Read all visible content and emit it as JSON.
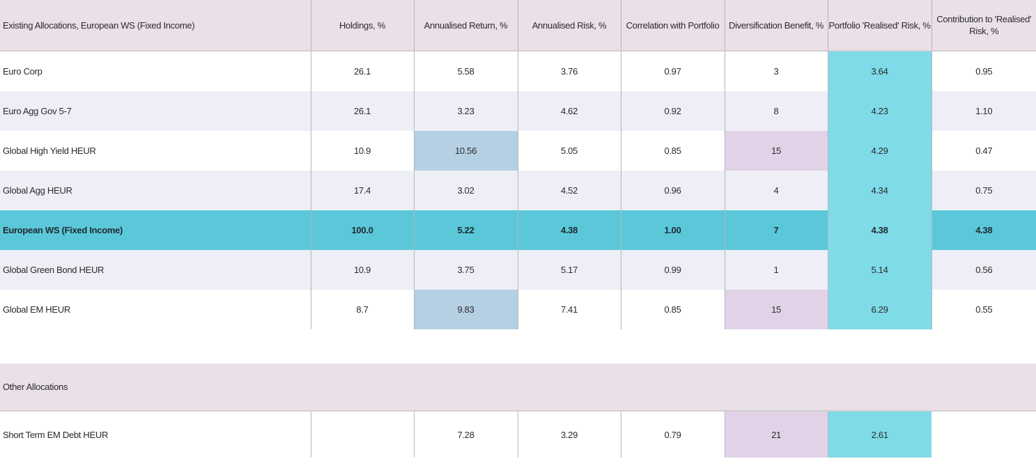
{
  "table": {
    "columns": [
      "Existing Allocations, European WS (Fixed Income)",
      "Holdings, %",
      "Annualised Return, %",
      "Annualised Risk, %",
      "Correlation with Portfolio",
      "Diversification Benefit, %",
      "Portfolio 'Realised' Risk, %",
      "Contribution to 'Realised' Risk, %"
    ],
    "rows": [
      {
        "name": "Euro Corp",
        "holdings": "26.1",
        "ret": "5.58",
        "risk": "3.76",
        "corr": "0.97",
        "div": "3",
        "prr": "3.64",
        "contrib": "0.95"
      },
      {
        "name": "Euro Agg Gov 5-7",
        "holdings": "26.1",
        "ret": "3.23",
        "risk": "4.62",
        "corr": "0.92",
        "div": "8",
        "prr": "4.23",
        "contrib": "1.10"
      },
      {
        "name": "Global High Yield HEUR",
        "holdings": "10.9",
        "ret": "10.56",
        "risk": "5.05",
        "corr": "0.85",
        "div": "15",
        "prr": "4.29",
        "contrib": "0.47"
      },
      {
        "name": "Global Agg HEUR",
        "holdings": "17.4",
        "ret": "3.02",
        "risk": "4.52",
        "corr": "0.96",
        "div": "4",
        "prr": "4.34",
        "contrib": "0.75"
      },
      {
        "name": "European WS (Fixed Income)",
        "holdings": "100.0",
        "ret": "5.22",
        "risk": "4.38",
        "corr": "1.00",
        "div": "7",
        "prr": "4.38",
        "contrib": "4.38"
      },
      {
        "name": "Global Green Bond HEUR",
        "holdings": "10.9",
        "ret": "3.75",
        "risk": "5.17",
        "corr": "0.99",
        "div": "1",
        "prr": "5.14",
        "contrib": "0.56"
      },
      {
        "name": "Global EM HEUR",
        "holdings": "8.7",
        "ret": "9.83",
        "risk": "7.41",
        "corr": "0.85",
        "div": "15",
        "prr": "6.29",
        "contrib": "0.55"
      }
    ],
    "other_section_title": "Other Allocations",
    "other_rows": [
      {
        "name": "Short Term EM Debt HEUR",
        "holdings": "",
        "ret": "7.28",
        "risk": "3.29",
        "corr": "0.79",
        "div": "21",
        "prr": "2.61",
        "contrib": ""
      }
    ],
    "highlight_colors": {
      "return": "#b5d0e3",
      "diversification": "#e1d2e7",
      "realised_risk": "#7fdbe8",
      "portfolio_row": "#5bc8da"
    }
  }
}
